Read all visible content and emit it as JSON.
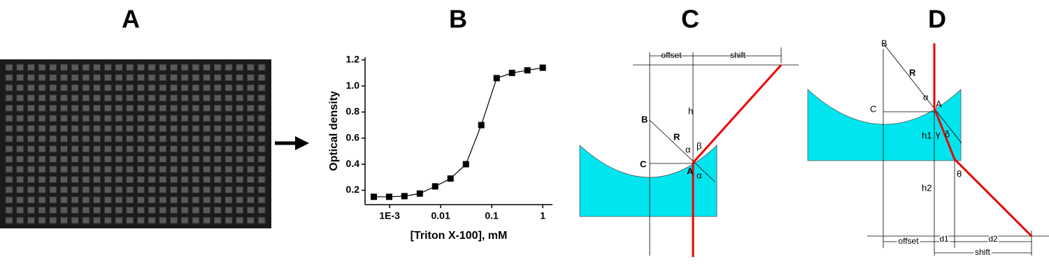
{
  "panels": [
    "A",
    "B",
    "C",
    "D"
  ],
  "chart_data": {
    "type": "line",
    "x_label": "[Triton X-100], mM",
    "y_label": "Optical density",
    "x": [
      0.00049,
      0.00098,
      0.00195,
      0.0039,
      0.0078,
      0.0156,
      0.03125,
      0.0625,
      0.125,
      0.25,
      0.5,
      1
    ],
    "series": [
      {
        "name": "Optical density",
        "color": "#000000",
        "values": [
          0.15,
          0.15,
          0.155,
          0.175,
          0.23,
          0.29,
          0.4,
          0.7,
          1.06,
          1.1,
          1.12,
          1.14
        ]
      }
    ],
    "xlim": [
      0.00033,
      1.55
    ],
    "xscale": "log",
    "xticks": [
      {
        "value": 0.001,
        "label": "1E-3"
      },
      0.01,
      0.1,
      1
    ],
    "ylim": [
      0.09,
      1.22
    ],
    "yticks": [
      0.2,
      0.4,
      0.6,
      0.8,
      {
        "value": 1.0,
        "label": "1.0"
      },
      1.2
    ]
  },
  "diagram_c": {
    "offset": "offset",
    "shift": "shift",
    "h": "h",
    "B": "B",
    "R": "R",
    "alpha": "α",
    "beta": "β",
    "C": "C",
    "A": "A",
    "alpha2": "α"
  },
  "diagram_d": {
    "B": "B",
    "R": "R",
    "alpha": "α",
    "C": "C",
    "A": "A",
    "h1": "h1",
    "gamma": "γ",
    "delta": "δ",
    "h2": "h2",
    "theta": "θ",
    "offset": "offset",
    "d1": "d1",
    "d2": "d2",
    "shift": "shift"
  }
}
